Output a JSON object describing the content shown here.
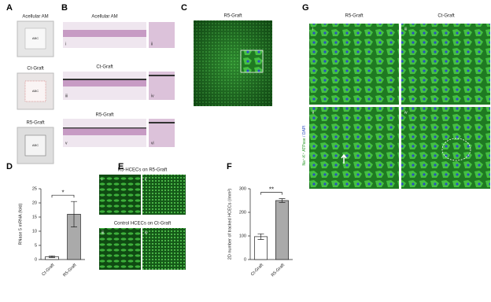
{
  "panels": {
    "A": {
      "label": "A",
      "titles": [
        "Acellular AM",
        "Ct-Graft",
        "R5-Graft"
      ],
      "stamps": [
        "ABC",
        "ABC",
        "ABC"
      ]
    },
    "B": {
      "label": "B",
      "rows": [
        {
          "title": "Acellular AM",
          "subs": [
            "i",
            "ii"
          ]
        },
        {
          "title": "Ct-Graft",
          "subs": [
            "iii",
            "iv"
          ]
        },
        {
          "title": "R5-Graft",
          "subs": [
            "v",
            "vi"
          ]
        }
      ]
    },
    "C": {
      "label": "C",
      "title": "R5-Graft"
    },
    "E": {
      "label": "E",
      "rows": [
        {
          "title": "R5-HCECs on R5-Graft",
          "subs": [
            "i",
            "ii"
          ]
        },
        {
          "title": "Control HCECs on Ct-Graft",
          "subs": [
            "iii",
            "iv"
          ]
        }
      ]
    },
    "G": {
      "label": "G",
      "columns": [
        "R5-Graft",
        "Ct-Graft"
      ],
      "subs": [
        "i",
        "iii",
        "ii",
        "iv"
      ],
      "stain": [
        "Na⁺-K⁺ ATPase",
        " / DAPI"
      ]
    }
  },
  "chart_data": [
    {
      "type": "bar",
      "panel_label": "D",
      "y_label": "RNase 5 mRNA (fold)",
      "categories": [
        "Ct-Graft",
        "R5-Graft"
      ],
      "values": [
        1,
        16
      ],
      "errors": [
        0.3,
        4.5
      ],
      "colors": [
        "#ffffff",
        "#aaaaaa"
      ],
      "ylim": [
        0,
        25
      ],
      "yticks": [
        0,
        5,
        10,
        15,
        20,
        25
      ],
      "significance": "*"
    },
    {
      "type": "bar",
      "panel_label": "F",
      "y_label": "2D number of tracked HCECs (/mm²)",
      "categories": [
        "Ct-Graft",
        "R5-Graft"
      ],
      "values": [
        97,
        250
      ],
      "errors": [
        12,
        8
      ],
      "colors": [
        "#ffffff",
        "#aaaaaa"
      ],
      "ylim": [
        0,
        300
      ],
      "yticks": [
        0,
        100,
        200,
        300
      ],
      "significance": "**"
    }
  ]
}
